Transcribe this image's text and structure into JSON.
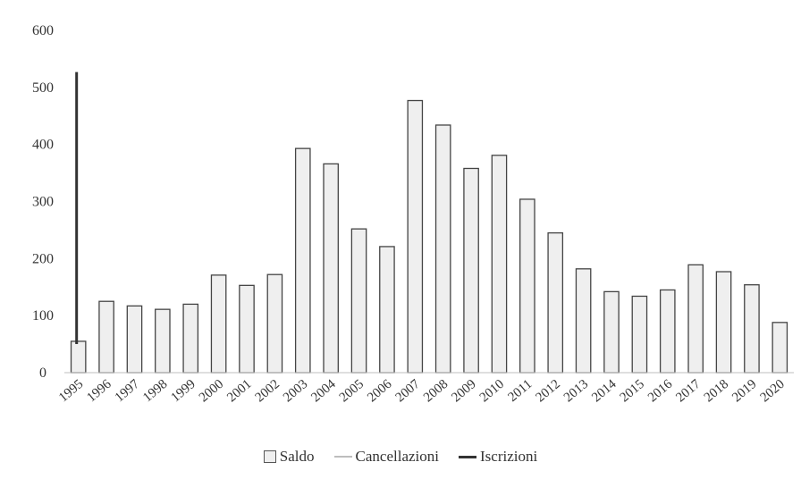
{
  "chart_data": {
    "type": "bar",
    "categories": [
      "1995",
      "1996",
      "1997",
      "1998",
      "1999",
      "2000",
      "2001",
      "2002",
      "2003",
      "2004",
      "2005",
      "2006",
      "2007",
      "2008",
      "2009",
      "2010",
      "2011",
      "2012",
      "2013",
      "2014",
      "2015",
      "2016",
      "2017",
      "2018",
      "2019",
      "2020"
    ],
    "series": [
      {
        "name": "Saldo",
        "type": "bar",
        "color": "#efefef",
        "values": [
          55,
          125,
          117,
          111,
          120,
          171,
          153,
          172,
          393,
          366,
          252,
          221,
          477,
          434,
          358,
          381,
          304,
          245,
          182,
          142,
          134,
          145,
          189,
          177,
          154,
          88
        ]
      },
      {
        "name": "Cancellazioni",
        "type": "line",
        "color": "#bdbdbd",
        "values": [
          97,
          null,
          null,
          null,
          null,
          null,
          null,
          null,
          null,
          null,
          null,
          null,
          null,
          null,
          null,
          null,
          null,
          null,
          null,
          null,
          null,
          null,
          null,
          null,
          null,
          null
        ]
      },
      {
        "name": "Iscrizioni",
        "type": "line",
        "color": "#333333",
        "values": [
          527,
          null,
          null,
          null,
          null,
          null,
          null,
          null,
          null,
          null,
          null,
          null,
          null,
          null,
          null,
          null,
          null,
          null,
          null,
          null,
          null,
          null,
          null,
          null,
          null,
          null
        ]
      }
    ],
    "yticks": [
      "0",
      "100",
      "200",
      "300",
      "400",
      "500",
      "600"
    ],
    "ylim": [
      0,
      600
    ],
    "title": "",
    "xlabel": "",
    "ylabel": "",
    "grid": false,
    "legend_position": "bottom"
  }
}
